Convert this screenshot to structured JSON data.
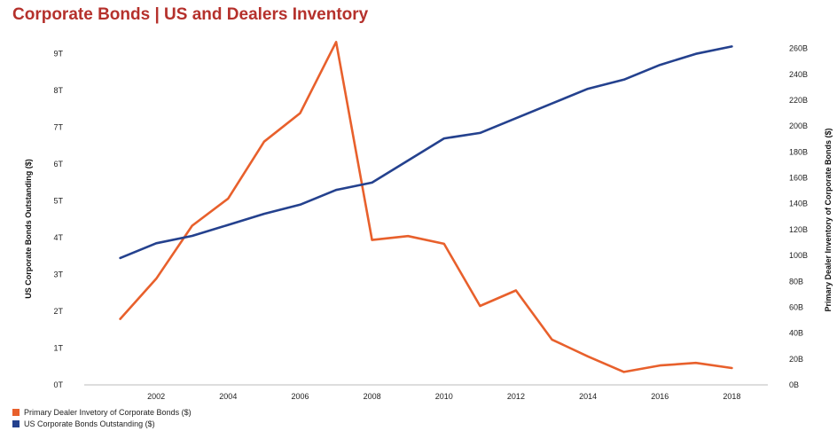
{
  "title": "Corporate Bonds | US and Dealers Inventory",
  "chart_data": {
    "type": "line",
    "x": [
      2001,
      2002,
      2003,
      2004,
      2005,
      2006,
      2007,
      2008,
      2009,
      2010,
      2011,
      2012,
      2013,
      2014,
      2015,
      2016,
      2017,
      2018
    ],
    "x_tick_labels": [
      "2002",
      "2004",
      "2006",
      "2008",
      "2010",
      "2012",
      "2014",
      "2016",
      "2018"
    ],
    "y_left": {
      "label": "US Corporate Bonds Outstanding ($)",
      "range": [
        0,
        9.5
      ],
      "tick_labels": [
        "0T",
        "1T",
        "2T",
        "3T",
        "4T",
        "5T",
        "6T",
        "7T",
        "8T",
        "9T"
      ]
    },
    "y_right": {
      "label": "Primary Dealer Inventory of Corporate Bonds ($)",
      "range": [
        0,
        270
      ],
      "tick_labels": [
        "0B",
        "20B",
        "40B",
        "60B",
        "80B",
        "100B",
        "120B",
        "140B",
        "160B",
        "180B",
        "200B",
        "220B",
        "240B",
        "260B"
      ]
    },
    "series": [
      {
        "name": "Primary Dealer Invetory of Corporate Bonds ($)",
        "axis": "right",
        "color": "#e8602c",
        "values": [
          51,
          82,
          123,
          144,
          188,
          210,
          265,
          112,
          115,
          109,
          61,
          73,
          35,
          22,
          10,
          15,
          17,
          13
        ]
      },
      {
        "name": "US Corporate Bonds Outstanding ($)",
        "axis": "left",
        "color": "#24418e",
        "values": [
          3.45,
          3.85,
          4.05,
          4.35,
          4.65,
          4.9,
          5.3,
          5.5,
          6.1,
          6.7,
          6.85,
          7.25,
          7.65,
          8.05,
          8.3,
          8.7,
          9.0,
          9.2
        ]
      }
    ],
    "grid": false,
    "legend_position": "bottom-left"
  }
}
